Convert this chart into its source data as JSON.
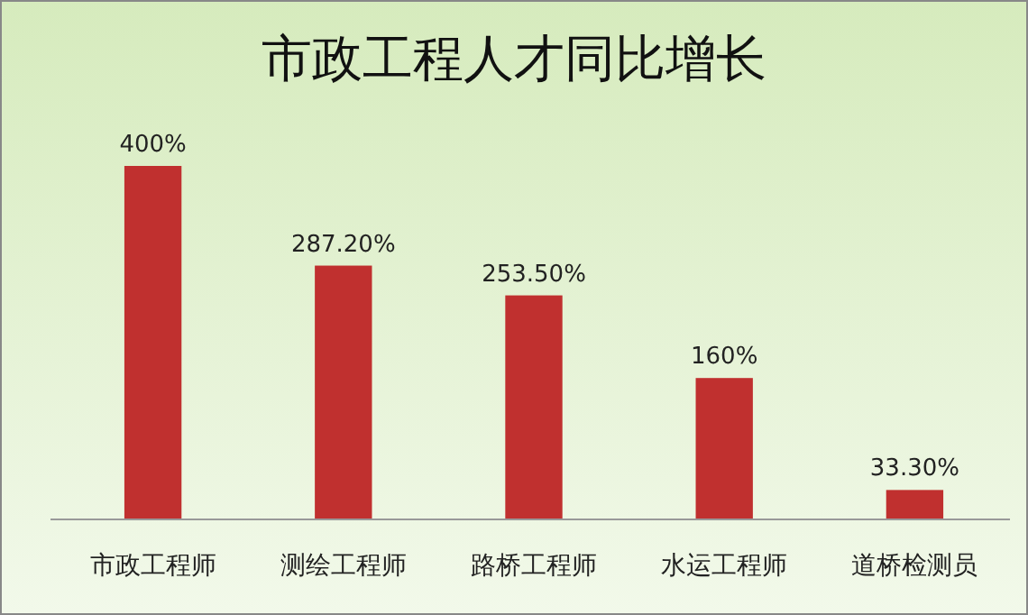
{
  "chart_data": {
    "type": "bar",
    "title": "市政工程人才同比增长",
    "categories": [
      "市政工程师",
      "测绘工程师",
      "路桥工程师",
      "水运工程师",
      "道桥检测员"
    ],
    "values": [
      400,
      287.2,
      253.5,
      160,
      33.3
    ],
    "value_labels": [
      "400%",
      "287.20%",
      "253.50%",
      "160%",
      "33.30%"
    ],
    "color": "#c0302f",
    "grid": false
  }
}
